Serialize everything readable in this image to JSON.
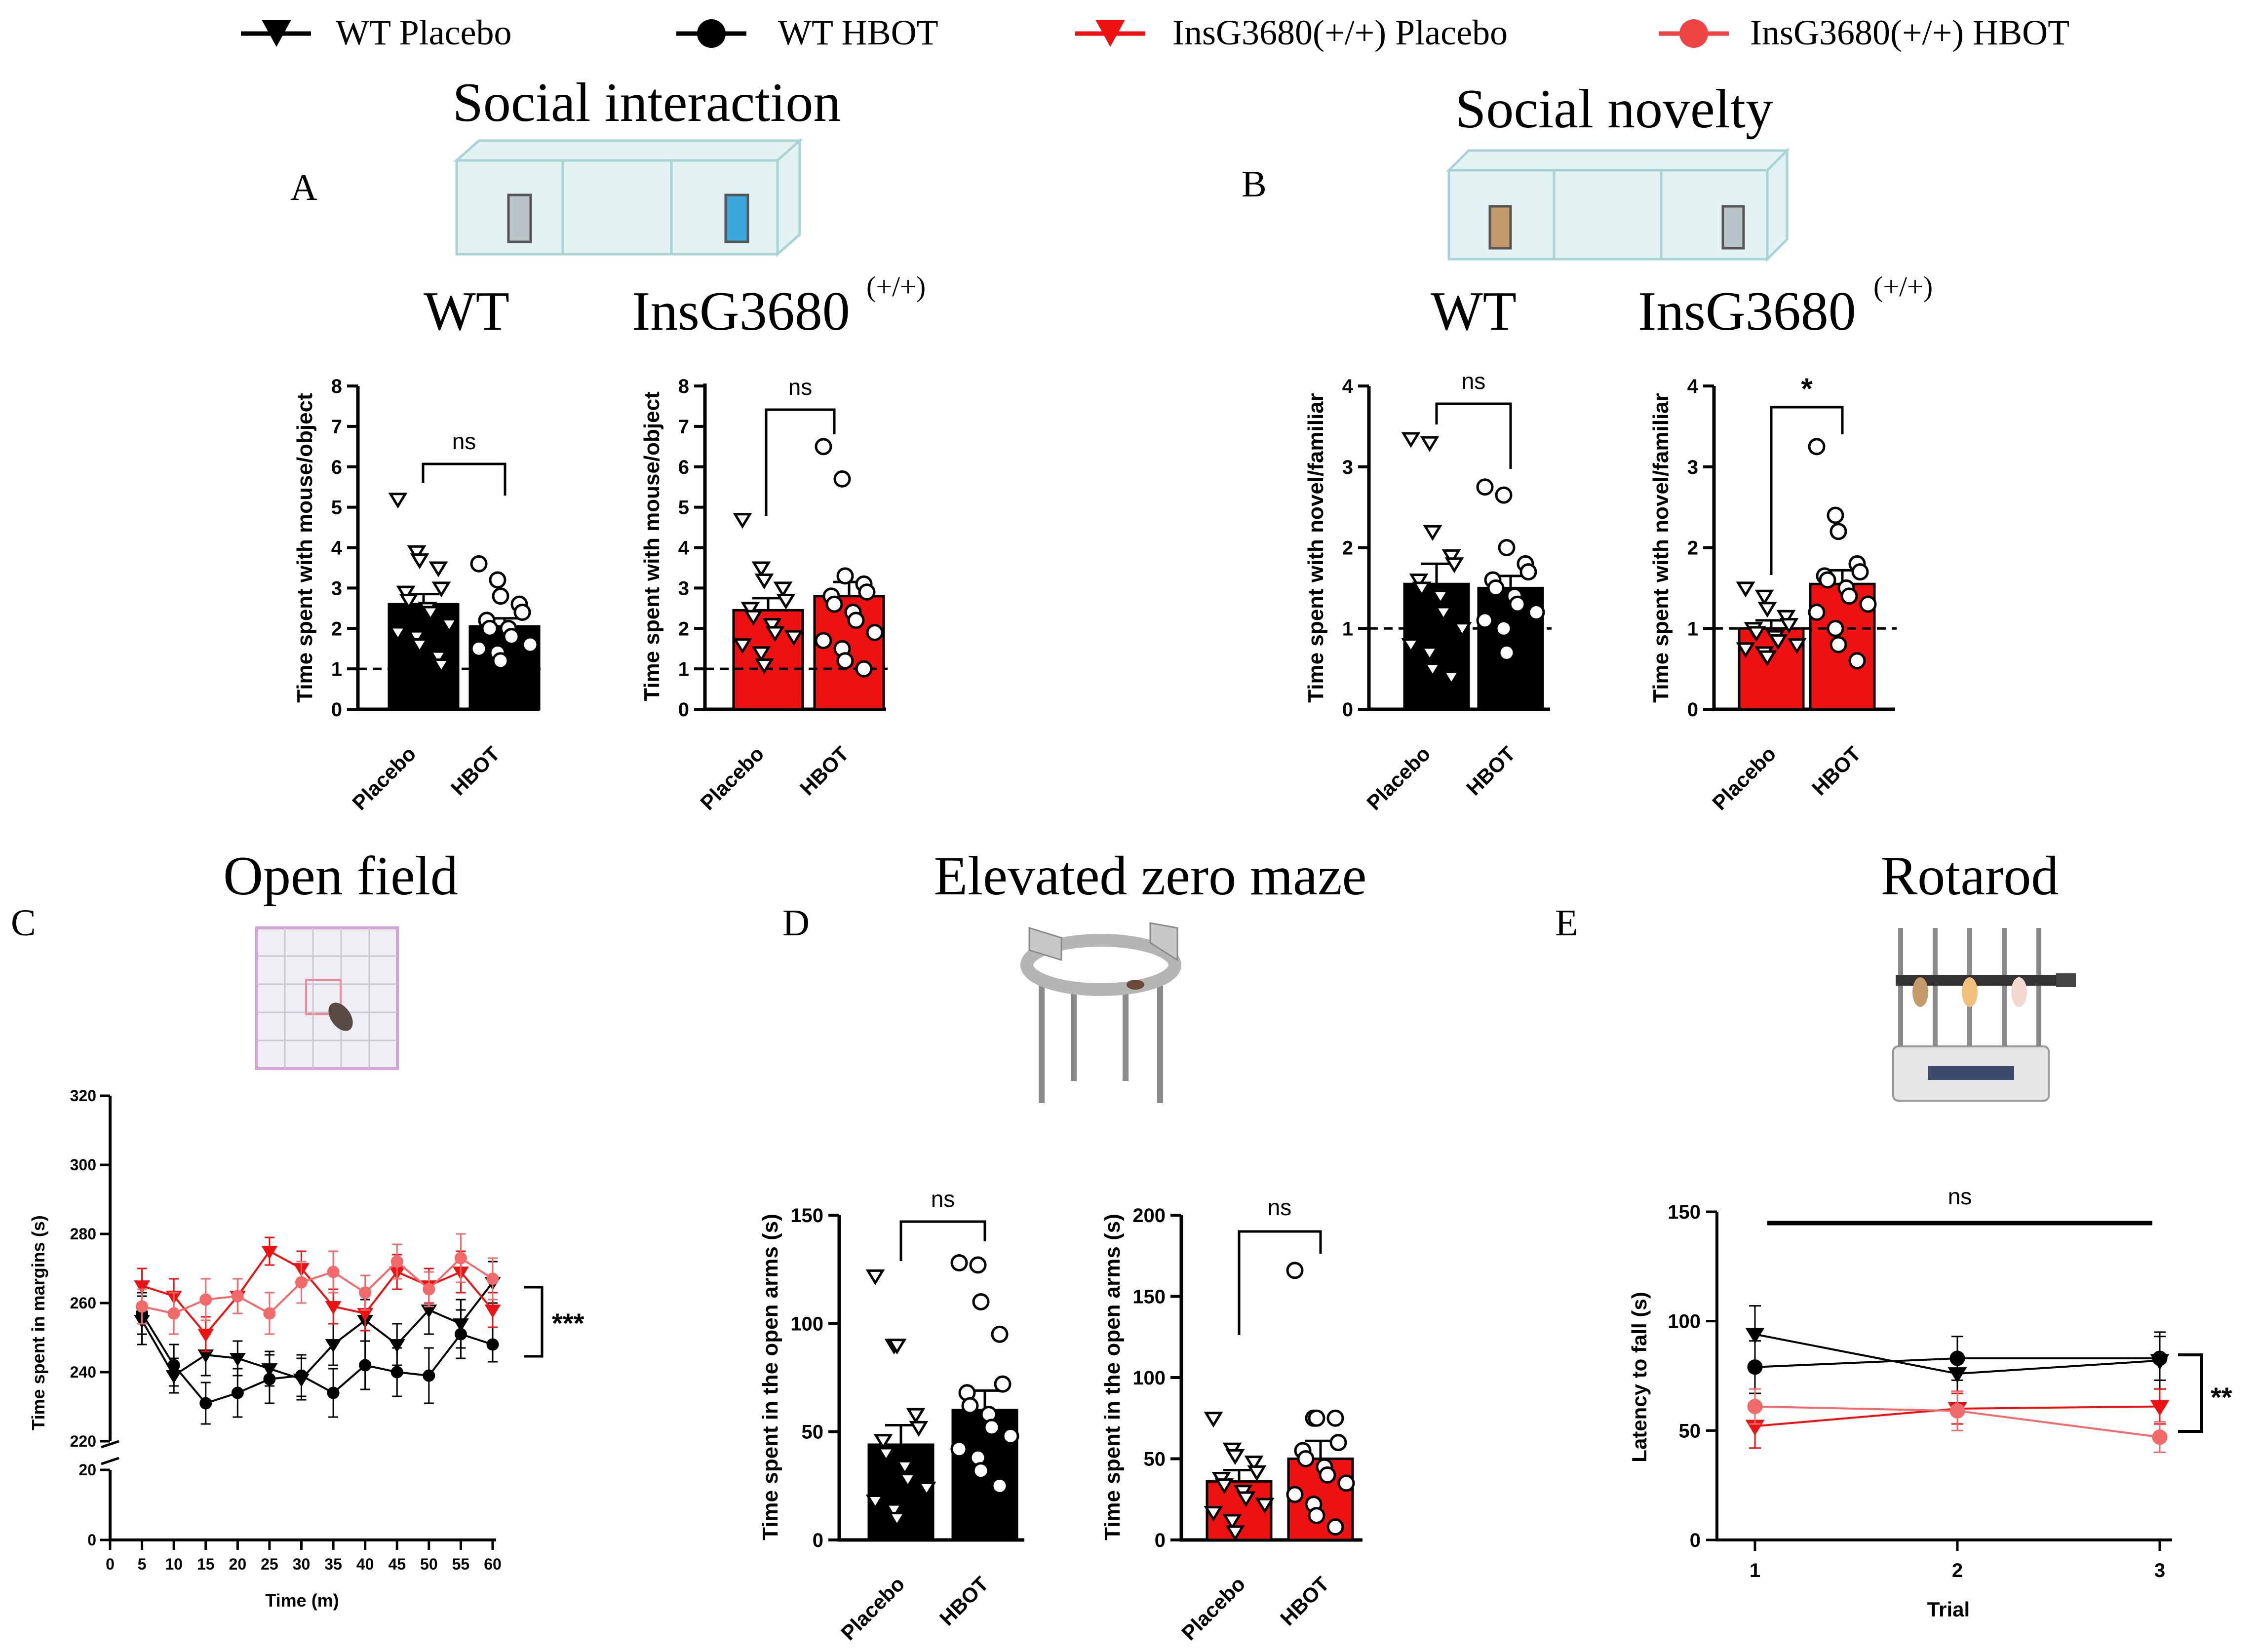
{
  "legend": [
    {
      "label": "WT Placebo",
      "color": "#000000",
      "marker": "triangle-down"
    },
    {
      "label": "WT HBOT",
      "color": "#000000",
      "marker": "circle"
    },
    {
      "label": "InsG3680(+/+) Placebo",
      "color": "#ee1111",
      "marker": "triangle-down"
    },
    {
      "label": "InsG3680(+/+) HBOT",
      "color": "#ee4444",
      "marker": "circle"
    }
  ],
  "sections": {
    "social_interaction": "Social interaction",
    "social_novelty": "Social novelty",
    "open_field": "Open field",
    "elevated_zero_maze": "Elevated zero maze",
    "rotarod": "Rotarod"
  },
  "panel_letters": {
    "a": "A",
    "b": "B",
    "c": "C",
    "d": "D",
    "e": "E"
  },
  "genotypes": {
    "wt": "WT",
    "ins": "InsG3680",
    "ins_sup": "(+/+)"
  },
  "colors": {
    "black": "#000000",
    "red": "#ee1111",
    "light_red": "#f26a6a"
  },
  "chart_data": [
    {
      "id": "A-WT",
      "type": "bar",
      "title": "WT",
      "ylabel": "Time spent with mouse/object",
      "ylim": [
        0,
        8
      ],
      "yticks": [
        0,
        1,
        2,
        3,
        4,
        5,
        6,
        7,
        8
      ],
      "reference_line": 1,
      "categories": [
        "Placebo",
        "HBOT"
      ],
      "values": [
        2.6,
        2.05
      ],
      "errors": [
        0.25,
        0.2
      ],
      "significance": "ns",
      "fill": "#000000",
      "points": [
        [
          5.2,
          3.9,
          3.7,
          3.5,
          3.0,
          2.9,
          2.7,
          2.5,
          2.4,
          2.1,
          1.9,
          1.8,
          1.6,
          1.3,
          1.1
        ],
        [
          3.6,
          3.2,
          2.8,
          2.6,
          2.4,
          2.2,
          2.0,
          2.0,
          1.8,
          1.6,
          1.5,
          1.4,
          1.2
        ]
      ]
    },
    {
      "id": "A-Ins",
      "type": "bar",
      "title": "InsG3680(+/+)",
      "ylabel": "Time spent with mouse/object",
      "ylim": [
        0,
        8
      ],
      "yticks": [
        0,
        1,
        2,
        3,
        4,
        5,
        6,
        7,
        8
      ],
      "reference_line": 1,
      "categories": [
        "Placebo",
        "HBOT"
      ],
      "values": [
        2.45,
        2.8
      ],
      "errors": [
        0.3,
        0.35
      ],
      "significance": "ns",
      "fill": "#ee1111",
      "points": [
        [
          4.7,
          3.5,
          3.2,
          3.0,
          2.7,
          2.5,
          2.3,
          2.1,
          1.9,
          1.8,
          1.6,
          1.4,
          1.1
        ],
        [
          6.5,
          5.7,
          3.3,
          3.1,
          2.9,
          2.8,
          2.6,
          2.4,
          2.2,
          1.9,
          1.7,
          1.5,
          1.2,
          1.0
        ]
      ]
    },
    {
      "id": "B-WT",
      "type": "bar",
      "title": "WT",
      "ylabel": "Time spent with novel/familiar",
      "ylim": [
        0,
        4
      ],
      "yticks": [
        0,
        1,
        2,
        3,
        4
      ],
      "reference_line": 1,
      "categories": [
        "Placebo",
        "HBOT"
      ],
      "values": [
        1.55,
        1.5
      ],
      "errors": [
        0.25,
        0.15
      ],
      "significance": "ns",
      "fill": "#000000",
      "points": [
        [
          3.35,
          3.3,
          2.2,
          1.9,
          1.8,
          1.6,
          1.5,
          1.4,
          1.2,
          1.0,
          0.8,
          0.7,
          0.5,
          0.4
        ],
        [
          2.75,
          2.65,
          2.0,
          1.8,
          1.7,
          1.6,
          1.5,
          1.4,
          1.3,
          1.2,
          1.1,
          1.0,
          0.7
        ]
      ]
    },
    {
      "id": "B-Ins",
      "type": "bar",
      "title": "InsG3680(+/+)",
      "ylabel": "Time spent with novel/familiar",
      "ylim": [
        0,
        4
      ],
      "yticks": [
        0,
        1,
        2,
        3,
        4
      ],
      "reference_line": 1,
      "categories": [
        "Placebo",
        "HBOT"
      ],
      "values": [
        1.0,
        1.55
      ],
      "errors": [
        0.1,
        0.17
      ],
      "significance": "*",
      "fill": "#ee1111",
      "points": [
        [
          1.5,
          1.4,
          1.25,
          1.15,
          1.05,
          1.0,
          0.95,
          0.9,
          0.85,
          0.8,
          0.75,
          0.7,
          0.65
        ],
        [
          3.25,
          2.4,
          2.2,
          1.8,
          1.7,
          1.65,
          1.6,
          1.5,
          1.4,
          1.3,
          1.2,
          1.0,
          0.8,
          0.6
        ]
      ]
    },
    {
      "id": "C",
      "type": "line",
      "title": "Open field",
      "xlabel": "Time (m)",
      "ylabel": "Time spent in margins (s)",
      "x": [
        5,
        10,
        15,
        20,
        25,
        30,
        35,
        40,
        45,
        50,
        55,
        60
      ],
      "xticks": [
        0,
        5,
        10,
        15,
        20,
        25,
        30,
        35,
        40,
        45,
        50,
        55,
        60
      ],
      "ylim_upper": [
        220,
        320
      ],
      "yticks_upper": [
        220,
        240,
        260,
        280,
        300,
        320
      ],
      "ylim_lower": [
        0,
        20
      ],
      "yticks_lower": [
        0,
        20
      ],
      "significance": "***",
      "series": [
        {
          "name": "WT Placebo",
          "marker": "triangle-down",
          "color": "#000000",
          "values": [
            255,
            239,
            245,
            244,
            241,
            238,
            248,
            255,
            248,
            258,
            254,
            266
          ],
          "errors": [
            7,
            5,
            6,
            5,
            5,
            6,
            6,
            6,
            6,
            7,
            7,
            6
          ]
        },
        {
          "name": "WT HBOT",
          "marker": "circle",
          "color": "#000000",
          "values": [
            257,
            242,
            231,
            234,
            238,
            239,
            234,
            242,
            240,
            239,
            251,
            248
          ],
          "errors": [
            6,
            6,
            6,
            7,
            7,
            6,
            7,
            7,
            7,
            8,
            7,
            5
          ]
        },
        {
          "name": "InsG3680(+/+) Placebo",
          "marker": "triangle-down",
          "color": "#ee1111",
          "values": [
            265,
            262,
            251,
            262,
            275,
            270,
            259,
            257,
            269,
            265,
            269,
            258
          ],
          "errors": [
            5,
            5,
            5,
            5,
            4,
            5,
            5,
            5,
            5,
            5,
            6,
            5
          ]
        },
        {
          "name": "InsG3680(+/+) HBOT",
          "marker": "circle",
          "color": "#f26a6a",
          "values": [
            259,
            257,
            261,
            262,
            257,
            266,
            269,
            263,
            272,
            264,
            273,
            267
          ],
          "errors": [
            5,
            6,
            6,
            5,
            6,
            6,
            6,
            5,
            5,
            5,
            7,
            6
          ]
        }
      ]
    },
    {
      "id": "D-WT",
      "type": "bar",
      "ylabel": "Time spent in the open arms (s)",
      "ylim": [
        0,
        150
      ],
      "yticks": [
        0,
        50,
        100,
        150
      ],
      "categories": [
        "Placebo",
        "HBOT"
      ],
      "values": [
        44,
        60
      ],
      "errors": [
        9,
        9
      ],
      "significance": "ns",
      "fill": "#000000",
      "points": [
        [
          122,
          90,
          90,
          58,
          52,
          46,
          40,
          34,
          28,
          24,
          18,
          14,
          10
        ],
        [
          128,
          127,
          110,
          95,
          72,
          68,
          62,
          58,
          52,
          48,
          42,
          38,
          32,
          25
        ]
      ]
    },
    {
      "id": "D-Ins",
      "type": "bar",
      "ylabel": "Time spent in the open arms (s)",
      "ylim": [
        0,
        200
      ],
      "yticks": [
        0,
        50,
        100,
        150,
        200
      ],
      "categories": [
        "Placebo",
        "HBOT"
      ],
      "values": [
        36,
        50
      ],
      "errors": [
        7,
        11
      ],
      "significance": "ns",
      "fill": "#ee1111",
      "points": [
        [
          75,
          56,
          52,
          48,
          42,
          38,
          34,
          30,
          26,
          22,
          17,
          12,
          5
        ],
        [
          166,
          75,
          75,
          75,
          60,
          55,
          50,
          45,
          40,
          35,
          28,
          22,
          15,
          8
        ]
      ]
    },
    {
      "id": "E",
      "type": "line",
      "title": "Rotarod",
      "xlabel": "Trial",
      "ylabel": "Latency to fall  (s)",
      "x": [
        1,
        2,
        3
      ],
      "ylim": [
        0,
        150
      ],
      "yticks": [
        0,
        50,
        100,
        150
      ],
      "significance_top": "ns",
      "significance_right": "**",
      "series": [
        {
          "name": "WT Placebo",
          "marker": "triangle-down",
          "color": "#000000",
          "values": [
            94,
            76,
            82
          ],
          "errors": [
            13,
            8,
            13
          ]
        },
        {
          "name": "WT HBOT",
          "marker": "circle",
          "color": "#000000",
          "values": [
            79,
            83,
            83
          ],
          "errors": [
            12,
            10,
            10
          ]
        },
        {
          "name": "InsG3680(+/+) Placebo",
          "marker": "triangle-down",
          "color": "#ee1111",
          "values": [
            52,
            60,
            61
          ],
          "errors": [
            10,
            7,
            8
          ]
        },
        {
          "name": "InsG3680(+/+) HBOT",
          "marker": "circle",
          "color": "#f26a6a",
          "values": [
            61,
            59,
            47
          ],
          "errors": [
            8,
            9,
            7
          ]
        }
      ]
    }
  ]
}
